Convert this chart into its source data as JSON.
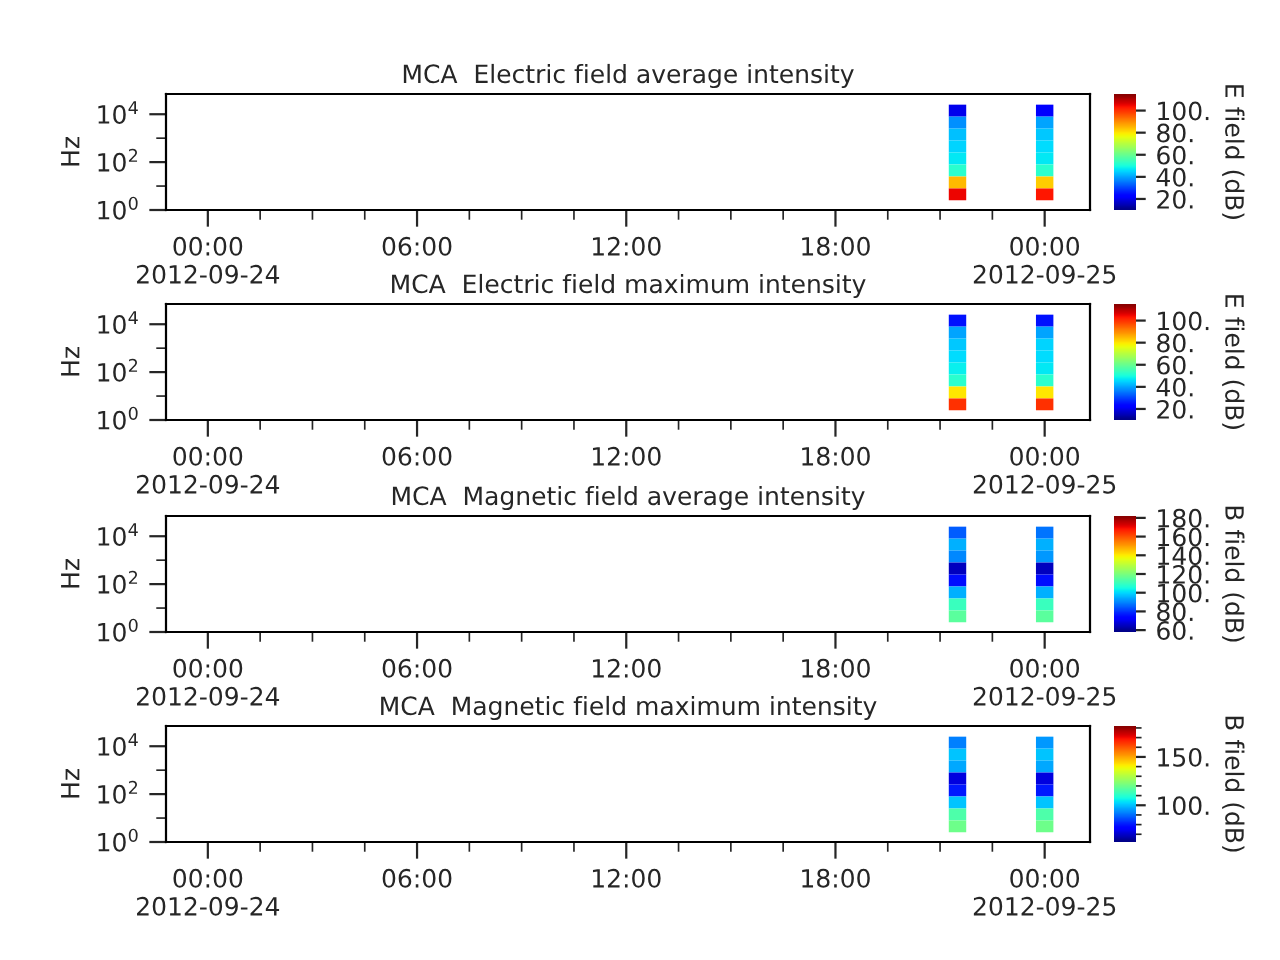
{
  "chart_data": [
    {
      "type": "heatmap",
      "title": "MCA  Electric field average intensity",
      "ylabel": "Hz",
      "clabel": "E field (dB)",
      "log": "y",
      "x": [
        "2012-09-24T21:30",
        "2012-09-24T22:00",
        "2012-09-24T22:30",
        "2012-09-24T23:00",
        "2012-09-24T23:30",
        "2012-09-25T00:00"
      ],
      "y": [
        14125,
        4467,
        1413,
        447,
        141,
        45,
        14,
        4.5
      ],
      "cells": [
        [
          20,
          null,
          null,
          null,
          null,
          22
        ],
        [
          38,
          null,
          null,
          null,
          null,
          40
        ],
        [
          43,
          null,
          null,
          null,
          null,
          44
        ],
        [
          45,
          null,
          null,
          null,
          null,
          46
        ],
        [
          47,
          null,
          null,
          null,
          null,
          47
        ],
        [
          52,
          null,
          null,
          null,
          null,
          52
        ],
        [
          85,
          null,
          null,
          null,
          null,
          83
        ],
        [
          105,
          null,
          null,
          null,
          null,
          103
        ]
      ],
      "clim": [
        10,
        115
      ],
      "cticks": [
        {
          "value": 20,
          "label": "20."
        },
        {
          "value": 40,
          "label": "40."
        },
        {
          "value": 60,
          "label": "60."
        },
        {
          "value": 80,
          "label": "80."
        },
        {
          "value": 100,
          "label": "100."
        }
      ],
      "xlim": [
        "2012-09-23T22:48",
        "2012-09-25T01:18"
      ],
      "xticks": [
        {
          "value": "2012-09-24T00:00",
          "label": "00:00\n2012-09-24"
        },
        {
          "value": "2012-09-24T01:30",
          "label": null
        },
        {
          "value": "2012-09-24T03:00",
          "label": null
        },
        {
          "value": "2012-09-24T04:30",
          "label": null
        },
        {
          "value": "2012-09-24T06:00",
          "label": "06:00"
        },
        {
          "value": "2012-09-24T07:30",
          "label": null
        },
        {
          "value": "2012-09-24T09:00",
          "label": null
        },
        {
          "value": "2012-09-24T10:30",
          "label": null
        },
        {
          "value": "2012-09-24T12:00",
          "label": "12:00"
        },
        {
          "value": "2012-09-24T13:30",
          "label": null
        },
        {
          "value": "2012-09-24T15:00",
          "label": null
        },
        {
          "value": "2012-09-24T16:30",
          "label": null
        },
        {
          "value": "2012-09-24T18:00",
          "label": "18:00"
        },
        {
          "value": "2012-09-24T19:30",
          "label": null
        },
        {
          "value": "2012-09-24T21:00",
          "label": null
        },
        {
          "value": "2012-09-24T22:30",
          "label": null
        },
        {
          "value": "2012-09-25T00:00",
          "label": "00:00\n2012-09-25"
        }
      ],
      "ylim": [
        1,
        70000
      ],
      "yticks": [
        {
          "value": 1,
          "label": "10$^{0}$"
        },
        {
          "value": 10,
          "label": null
        },
        {
          "value": 100,
          "label": "10$^{2}$"
        },
        {
          "value": 1000,
          "label": null
        },
        {
          "value": 10000,
          "label": "10$^{4}$"
        }
      ]
    },
    {
      "type": "heatmap",
      "title": "MCA  Electric field maximum intensity",
      "ylabel": "Hz",
      "clabel": "E field (dB)",
      "log": "y",
      "x": [
        "2012-09-24T21:30",
        "2012-09-24T22:00",
        "2012-09-24T22:30",
        "2012-09-24T23:00",
        "2012-09-24T23:30",
        "2012-09-25T00:00"
      ],
      "y": [
        14125,
        4467,
        1413,
        447,
        141,
        45,
        14,
        4.5
      ],
      "cells": [
        [
          25,
          null,
          null,
          null,
          null,
          25
        ],
        [
          40,
          null,
          null,
          null,
          null,
          40
        ],
        [
          44,
          null,
          null,
          null,
          null,
          45
        ],
        [
          46,
          null,
          null,
          null,
          null,
          46
        ],
        [
          48,
          null,
          null,
          null,
          null,
          47
        ],
        [
          52,
          null,
          null,
          null,
          null,
          52
        ],
        [
          80,
          null,
          null,
          null,
          null,
          80
        ],
        [
          100,
          null,
          null,
          null,
          null,
          100
        ]
      ],
      "clim": [
        10,
        115
      ],
      "cticks": [
        {
          "value": 20,
          "label": "20."
        },
        {
          "value": 40,
          "label": "40."
        },
        {
          "value": 60,
          "label": "60."
        },
        {
          "value": 80,
          "label": "80."
        },
        {
          "value": 100,
          "label": "100."
        }
      ],
      "xlim": [
        "2012-09-23T22:48",
        "2012-09-25T01:18"
      ],
      "xticks": [
        {
          "value": "2012-09-24T00:00",
          "label": "00:00\n2012-09-24"
        },
        {
          "value": "2012-09-24T01:30",
          "label": null
        },
        {
          "value": "2012-09-24T03:00",
          "label": null
        },
        {
          "value": "2012-09-24T04:30",
          "label": null
        },
        {
          "value": "2012-09-24T06:00",
          "label": "06:00"
        },
        {
          "value": "2012-09-24T07:30",
          "label": null
        },
        {
          "value": "2012-09-24T09:00",
          "label": null
        },
        {
          "value": "2012-09-24T10:30",
          "label": null
        },
        {
          "value": "2012-09-24T12:00",
          "label": "12:00"
        },
        {
          "value": "2012-09-24T13:30",
          "label": null
        },
        {
          "value": "2012-09-24T15:00",
          "label": null
        },
        {
          "value": "2012-09-24T16:30",
          "label": null
        },
        {
          "value": "2012-09-24T18:00",
          "label": "18:00"
        },
        {
          "value": "2012-09-24T19:30",
          "label": null
        },
        {
          "value": "2012-09-24T21:00",
          "label": null
        },
        {
          "value": "2012-09-24T22:30",
          "label": null
        },
        {
          "value": "2012-09-25T00:00",
          "label": "00:00\n2012-09-25"
        }
      ],
      "ylim": [
        1,
        70000
      ],
      "yticks": [
        {
          "value": 1,
          "label": "10$^{0}$"
        },
        {
          "value": 10,
          "label": null
        },
        {
          "value": 100,
          "label": "10$^{2}$"
        },
        {
          "value": 1000,
          "label": null
        },
        {
          "value": 10000,
          "label": "10$^{4}$"
        }
      ]
    },
    {
      "type": "heatmap",
      "title": "MCA  Magnetic field average intensity",
      "ylabel": "Hz",
      "clabel": "B field (dB)",
      "log": "y",
      "x": [
        "2012-09-24T21:30",
        "2012-09-24T22:00",
        "2012-09-24T22:30",
        "2012-09-24T23:00",
        "2012-09-24T23:30",
        "2012-09-25T00:00"
      ],
      "y": [
        14125,
        4467,
        1413,
        447,
        141,
        45,
        14,
        4.5
      ],
      "cells": [
        [
          85,
          null,
          null,
          null,
          null,
          88
        ],
        [
          95,
          null,
          null,
          null,
          null,
          95
        ],
        [
          90,
          null,
          null,
          null,
          null,
          92
        ],
        [
          65,
          null,
          null,
          null,
          null,
          65
        ],
        [
          75,
          null,
          null,
          null,
          null,
          75
        ],
        [
          95,
          null,
          null,
          null,
          null,
          95
        ],
        [
          110,
          null,
          null,
          null,
          null,
          110
        ],
        [
          115,
          null,
          null,
          null,
          null,
          115
        ]
      ],
      "clim": [
        58,
        182
      ],
      "cticks": [
        {
          "value": 60,
          "label": "60."
        },
        {
          "value": 80,
          "label": "80."
        },
        {
          "value": 100,
          "label": "100."
        },
        {
          "value": 120,
          "label": "120."
        },
        {
          "value": 140,
          "label": "140."
        },
        {
          "value": 160,
          "label": "160."
        },
        {
          "value": 180,
          "label": "180."
        }
      ],
      "xlim": [
        "2012-09-23T22:48",
        "2012-09-25T01:18"
      ],
      "xticks": [
        {
          "value": "2012-09-24T00:00",
          "label": "00:00\n2012-09-24"
        },
        {
          "value": "2012-09-24T01:30",
          "label": null
        },
        {
          "value": "2012-09-24T03:00",
          "label": null
        },
        {
          "value": "2012-09-24T04:30",
          "label": null
        },
        {
          "value": "2012-09-24T06:00",
          "label": "06:00"
        },
        {
          "value": "2012-09-24T07:30",
          "label": null
        },
        {
          "value": "2012-09-24T09:00",
          "label": null
        },
        {
          "value": "2012-09-24T10:30",
          "label": null
        },
        {
          "value": "2012-09-24T12:00",
          "label": "12:00"
        },
        {
          "value": "2012-09-24T13:30",
          "label": null
        },
        {
          "value": "2012-09-24T15:00",
          "label": null
        },
        {
          "value": "2012-09-24T16:30",
          "label": null
        },
        {
          "value": "2012-09-24T18:00",
          "label": "18:00"
        },
        {
          "value": "2012-09-24T19:30",
          "label": null
        },
        {
          "value": "2012-09-24T21:00",
          "label": null
        },
        {
          "value": "2012-09-24T22:30",
          "label": null
        },
        {
          "value": "2012-09-25T00:00",
          "label": "00:00\n2012-09-25"
        }
      ],
      "ylim": [
        1,
        70000
      ],
      "yticks": [
        {
          "value": 1,
          "label": "10$^{0}$"
        },
        {
          "value": 10,
          "label": null
        },
        {
          "value": 100,
          "label": "10$^{2}$"
        },
        {
          "value": 1000,
          "label": null
        },
        {
          "value": 10000,
          "label": "10$^{4}$"
        }
      ]
    },
    {
      "type": "heatmap",
      "title": "MCA  Magnetic field maximum intensity",
      "ylabel": "Hz",
      "clabel": "B field (dB)",
      "log": "y",
      "x": [
        "2012-09-24T21:30",
        "2012-09-24T22:00",
        "2012-09-24T22:30",
        "2012-09-24T23:00",
        "2012-09-24T23:30",
        "2012-09-25T00:00"
      ],
      "y": [
        14125,
        4467,
        1413,
        447,
        141,
        45,
        14,
        4.5
      ],
      "cells": [
        [
          92,
          null,
          null,
          null,
          null,
          95
        ],
        [
          100,
          null,
          null,
          null,
          null,
          100
        ],
        [
          97,
          null,
          null,
          null,
          null,
          97
        ],
        [
          72,
          null,
          null,
          null,
          null,
          72
        ],
        [
          80,
          null,
          null,
          null,
          null,
          80
        ],
        [
          100,
          null,
          null,
          null,
          null,
          100
        ],
        [
          115,
          null,
          null,
          null,
          null,
          115
        ],
        [
          120,
          null,
          null,
          null,
          null,
          120
        ]
      ],
      "clim": [
        62,
        182
      ],
      "cticks": [
        {
          "value": 70,
          "label": null
        },
        {
          "value": 80,
          "label": null
        },
        {
          "value": 90,
          "label": null
        },
        {
          "value": 100,
          "label": "100."
        },
        {
          "value": 110,
          "label": null
        },
        {
          "value": 120,
          "label": null
        },
        {
          "value": 130,
          "label": null
        },
        {
          "value": 140,
          "label": null
        },
        {
          "value": 150,
          "label": "150."
        },
        {
          "value": 160,
          "label": null
        },
        {
          "value": 170,
          "label": null
        },
        {
          "value": 180,
          "label": null
        }
      ],
      "xlim": [
        "2012-09-23T22:48",
        "2012-09-25T01:18"
      ],
      "xticks": [
        {
          "value": "2012-09-24T00:00",
          "label": "00:00\n2012-09-24"
        },
        {
          "value": "2012-09-24T01:30",
          "label": null
        },
        {
          "value": "2012-09-24T03:00",
          "label": null
        },
        {
          "value": "2012-09-24T04:30",
          "label": null
        },
        {
          "value": "2012-09-24T06:00",
          "label": "06:00"
        },
        {
          "value": "2012-09-24T07:30",
          "label": null
        },
        {
          "value": "2012-09-24T09:00",
          "label": null
        },
        {
          "value": "2012-09-24T10:30",
          "label": null
        },
        {
          "value": "2012-09-24T12:00",
          "label": "12:00"
        },
        {
          "value": "2012-09-24T13:30",
          "label": null
        },
        {
          "value": "2012-09-24T15:00",
          "label": null
        },
        {
          "value": "2012-09-24T16:30",
          "label": null
        },
        {
          "value": "2012-09-24T18:00",
          "label": "18:00"
        },
        {
          "value": "2012-09-24T19:30",
          "label": null
        },
        {
          "value": "2012-09-24T21:00",
          "label": null
        },
        {
          "value": "2012-09-24T22:30",
          "label": null
        },
        {
          "value": "2012-09-25T00:00",
          "label": "00:00\n2012-09-25"
        }
      ],
      "ylim": [
        1,
        70000
      ],
      "yticks": [
        {
          "value": 1,
          "label": "10$^{0}$"
        },
        {
          "value": 10,
          "label": null
        },
        {
          "value": 100,
          "label": "10$^{2}$"
        },
        {
          "value": 1000,
          "label": null
        },
        {
          "value": 10000,
          "label": "10$^{4}$"
        }
      ]
    }
  ]
}
